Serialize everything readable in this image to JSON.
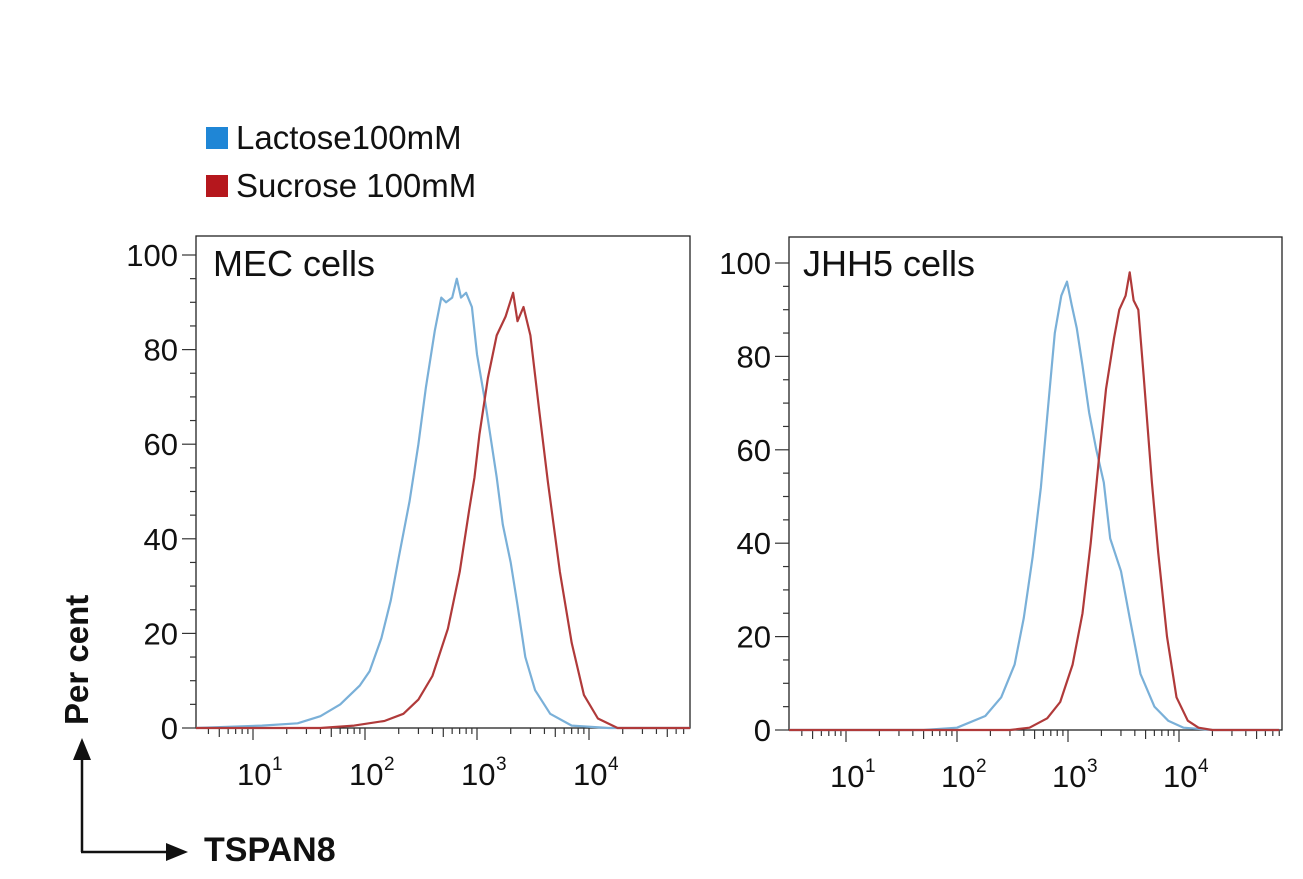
{
  "legend": {
    "items": [
      {
        "label": "Lactose100mM",
        "color": "#1f86d6"
      },
      {
        "label": "Sucrose 100mM",
        "color": "#b5171d"
      }
    ]
  },
  "axes": {
    "ylabel": "Per cent",
    "xlabel": "TSPAN8"
  },
  "chart_data": [
    {
      "type": "line",
      "title": "MEC cells",
      "xscale": "log",
      "xlim": [
        3,
        80000
      ],
      "ylim": [
        0,
        100
      ],
      "yticks": [
        0,
        20,
        40,
        60,
        80,
        100
      ],
      "xticks": [
        {
          "base": "10",
          "exp": "1"
        },
        {
          "base": "10",
          "exp": "2"
        },
        {
          "base": "10",
          "exp": "3"
        },
        {
          "base": "10",
          "exp": "4"
        }
      ],
      "series": [
        {
          "name": "Lactose100mM",
          "color": "#7ab0d8",
          "points": [
            [
              3,
              0
            ],
            [
              12,
              0.5
            ],
            [
              25,
              1
            ],
            [
              40,
              2.5
            ],
            [
              60,
              5
            ],
            [
              90,
              9
            ],
            [
              110,
              12
            ],
            [
              140,
              19
            ],
            [
              170,
              27
            ],
            [
              200,
              36
            ],
            [
              250,
              48
            ],
            [
              300,
              60
            ],
            [
              350,
              72
            ],
            [
              420,
              84
            ],
            [
              480,
              91
            ],
            [
              530,
              90
            ],
            [
              600,
              91
            ],
            [
              660,
              95
            ],
            [
              720,
              91
            ],
            [
              800,
              92
            ],
            [
              900,
              89
            ],
            [
              1000,
              79
            ],
            [
              1200,
              68
            ],
            [
              1500,
              53
            ],
            [
              1700,
              43
            ],
            [
              2000,
              35
            ],
            [
              2300,
              26
            ],
            [
              2700,
              15
            ],
            [
              3300,
              8
            ],
            [
              4500,
              3
            ],
            [
              7000,
              0.5
            ],
            [
              15000,
              0
            ],
            [
              80000,
              0
            ]
          ]
        },
        {
          "name": "Sucrose 100mM",
          "color": "#b03a3a",
          "points": [
            [
              3,
              0
            ],
            [
              40,
              0
            ],
            [
              80,
              0.5
            ],
            [
              150,
              1.5
            ],
            [
              220,
              3
            ],
            [
              300,
              6
            ],
            [
              400,
              11
            ],
            [
              550,
              21
            ],
            [
              700,
              33
            ],
            [
              850,
              46
            ],
            [
              950,
              53
            ],
            [
              1050,
              62
            ],
            [
              1250,
              74
            ],
            [
              1500,
              83
            ],
            [
              1800,
              87
            ],
            [
              2100,
              92
            ],
            [
              2300,
              86
            ],
            [
              2600,
              89
            ],
            [
              3000,
              83
            ],
            [
              3600,
              67
            ],
            [
              4300,
              52
            ],
            [
              5500,
              33
            ],
            [
              7000,
              18
            ],
            [
              9000,
              7
            ],
            [
              12000,
              2
            ],
            [
              18000,
              0
            ],
            [
              80000,
              0
            ]
          ]
        }
      ]
    },
    {
      "type": "line",
      "title": "JHH5 cells",
      "xscale": "log",
      "xlim": [
        3,
        80000
      ],
      "ylim": [
        0,
        100
      ],
      "yticks": [
        0,
        20,
        40,
        60,
        80,
        100
      ],
      "xticks": [
        {
          "base": "10",
          "exp": "1"
        },
        {
          "base": "10",
          "exp": "2"
        },
        {
          "base": "10",
          "exp": "3"
        },
        {
          "base": "10",
          "exp": "4"
        }
      ],
      "series": [
        {
          "name": "Lactose100mM",
          "color": "#7ab0d8",
          "points": [
            [
              3,
              0
            ],
            [
              50,
              0
            ],
            [
              100,
              0.5
            ],
            [
              180,
              3
            ],
            [
              250,
              7
            ],
            [
              330,
              14
            ],
            [
              400,
              24
            ],
            [
              480,
              37
            ],
            [
              570,
              52
            ],
            [
              660,
              69
            ],
            [
              760,
              85
            ],
            [
              870,
              93
            ],
            [
              980,
              96
            ],
            [
              1080,
              91
            ],
            [
              1200,
              86
            ],
            [
              1350,
              78
            ],
            [
              1550,
              68
            ],
            [
              1800,
              60
            ],
            [
              2100,
              53
            ],
            [
              2400,
              41
            ],
            [
              3000,
              34
            ],
            [
              3600,
              24
            ],
            [
              4500,
              12
            ],
            [
              6000,
              5
            ],
            [
              8000,
              2
            ],
            [
              11000,
              0.5
            ],
            [
              20000,
              0
            ],
            [
              80000,
              0
            ]
          ]
        },
        {
          "name": "Sucrose 100mM",
          "color": "#b03a3a",
          "points": [
            [
              3,
              0
            ],
            [
              300,
              0
            ],
            [
              450,
              0.5
            ],
            [
              650,
              2.5
            ],
            [
              850,
              6
            ],
            [
              1100,
              14
            ],
            [
              1350,
              25
            ],
            [
              1600,
              40
            ],
            [
              1900,
              58
            ],
            [
              2200,
              73
            ],
            [
              2600,
              84
            ],
            [
              2900,
              90
            ],
            [
              3300,
              93
            ],
            [
              3600,
              98
            ],
            [
              3900,
              92
            ],
            [
              4300,
              90
            ],
            [
              4800,
              76
            ],
            [
              5700,
              53
            ],
            [
              6500,
              38
            ],
            [
              7800,
              20
            ],
            [
              9500,
              7
            ],
            [
              12000,
              2
            ],
            [
              15000,
              0.5
            ],
            [
              20000,
              0
            ],
            [
              80000,
              0
            ]
          ]
        }
      ]
    }
  ]
}
